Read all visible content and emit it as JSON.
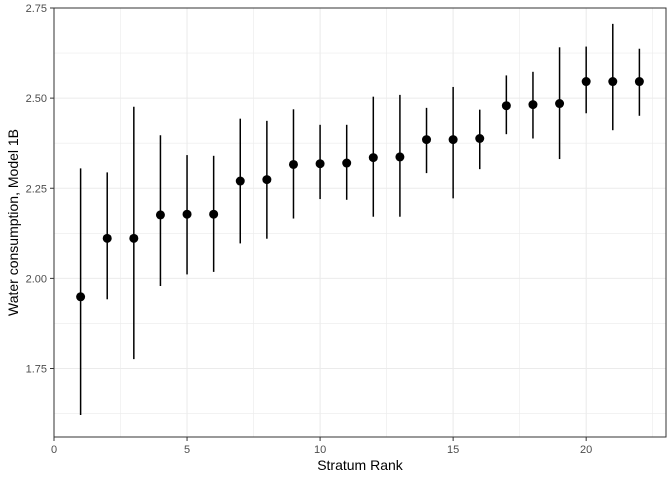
{
  "chart_data": {
    "type": "scatter",
    "xlabel": "Stratum Rank",
    "ylabel": "Water consumption, Model 1B",
    "xlim": [
      0,
      23
    ],
    "ylim": [
      1.56,
      2.75
    ],
    "xticks": [
      0,
      5,
      10,
      15,
      20
    ],
    "xtick_labels": [
      "0",
      "5",
      "10",
      "15",
      "20"
    ],
    "yticks": [
      1.75,
      2.0,
      2.25,
      2.5,
      2.75
    ],
    "ytick_labels": [
      "1.75",
      "2.00",
      "2.25",
      "2.50",
      "2.75"
    ],
    "grid": true,
    "panel_border": true,
    "point_color": "#000000",
    "points": [
      {
        "x": 1,
        "y": 1.949,
        "lower": 1.621,
        "upper": 2.305
      },
      {
        "x": 2,
        "y": 2.111,
        "lower": 1.942,
        "upper": 2.294
      },
      {
        "x": 3,
        "y": 2.111,
        "lower": 1.776,
        "upper": 2.476
      },
      {
        "x": 4,
        "y": 2.176,
        "lower": 1.979,
        "upper": 2.397
      },
      {
        "x": 5,
        "y": 2.178,
        "lower": 2.011,
        "upper": 2.342
      },
      {
        "x": 6,
        "y": 2.178,
        "lower": 2.018,
        "upper": 2.34
      },
      {
        "x": 7,
        "y": 2.27,
        "lower": 2.097,
        "upper": 2.443
      },
      {
        "x": 8,
        "y": 2.274,
        "lower": 2.11,
        "upper": 2.437
      },
      {
        "x": 9,
        "y": 2.316,
        "lower": 2.166,
        "upper": 2.469
      },
      {
        "x": 10,
        "y": 2.318,
        "lower": 2.22,
        "upper": 2.426
      },
      {
        "x": 11,
        "y": 2.32,
        "lower": 2.218,
        "upper": 2.426
      },
      {
        "x": 12,
        "y": 2.335,
        "lower": 2.171,
        "upper": 2.504
      },
      {
        "x": 13,
        "y": 2.337,
        "lower": 2.171,
        "upper": 2.509
      },
      {
        "x": 14,
        "y": 2.385,
        "lower": 2.292,
        "upper": 2.473
      },
      {
        "x": 15,
        "y": 2.385,
        "lower": 2.222,
        "upper": 2.531
      },
      {
        "x": 16,
        "y": 2.388,
        "lower": 2.303,
        "upper": 2.468
      },
      {
        "x": 17,
        "y": 2.479,
        "lower": 2.4,
        "upper": 2.563
      },
      {
        "x": 18,
        "y": 2.482,
        "lower": 2.388,
        "upper": 2.573
      },
      {
        "x": 19,
        "y": 2.485,
        "lower": 2.331,
        "upper": 2.641
      },
      {
        "x": 20,
        "y": 2.546,
        "lower": 2.458,
        "upper": 2.643
      },
      {
        "x": 21,
        "y": 2.546,
        "lower": 2.411,
        "upper": 2.706
      },
      {
        "x": 22,
        "y": 2.546,
        "lower": 2.451,
        "upper": 2.637
      }
    ]
  }
}
